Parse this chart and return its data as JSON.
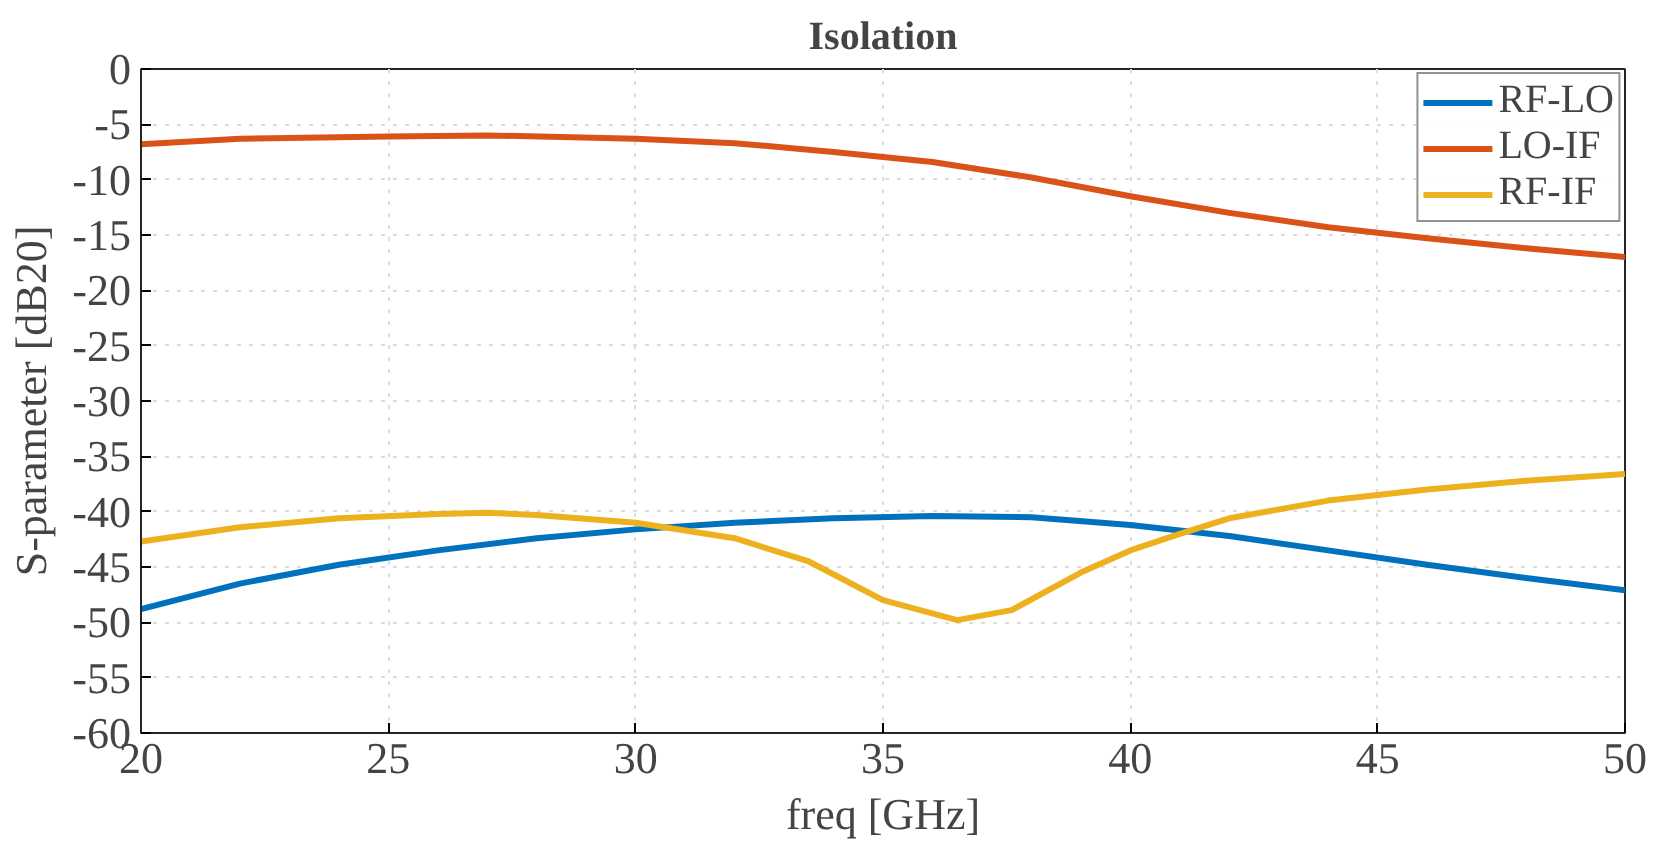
{
  "chart_data": {
    "type": "line",
    "title": "Isolation",
    "xlabel": "freq [GHz]",
    "ylabel": "S-parameter [dB20]",
    "xlim": [
      20,
      50
    ],
    "xticks": [
      20,
      25,
      30,
      35,
      40,
      45,
      50
    ],
    "ylim": [
      -60,
      0
    ],
    "yticks": [
      -60,
      -55,
      -50,
      -45,
      -40,
      -35,
      -30,
      -25,
      -20,
      -15,
      -10,
      -5,
      0
    ],
    "grid": true,
    "legend": "top right",
    "marker": "none",
    "line_style": "solid",
    "series": [
      {
        "name": "RF-LO",
        "color": "#0072bd",
        "x": [
          20,
          22,
          24,
          26,
          28,
          30,
          32,
          34,
          36,
          38,
          40,
          42,
          44,
          46,
          48,
          50
        ],
        "values": [
          -48.8,
          -46.5,
          -44.8,
          -43.5,
          -42.4,
          -41.6,
          -41.0,
          -40.6,
          -40.4,
          -40.5,
          -41.2,
          -42.2,
          -43.5,
          -44.8,
          -46.0,
          -47.1
        ]
      },
      {
        "name": "LO-IF",
        "color": "#d95319",
        "x": [
          20,
          22,
          25,
          27,
          30,
          32,
          34,
          36,
          38,
          40,
          42,
          44,
          46,
          48,
          50
        ],
        "values": [
          -6.8,
          -6.3,
          -6.1,
          -6.0,
          -6.3,
          -6.7,
          -7.5,
          -8.4,
          -9.8,
          -11.5,
          -13.0,
          -14.3,
          -15.3,
          -16.2,
          -17.0
        ]
      },
      {
        "name": "RF-IF",
        "color": "#edb120",
        "x": [
          20,
          22,
          24,
          26,
          27,
          28,
          30,
          32,
          33.5,
          35,
          36.5,
          37.6,
          39,
          40,
          41,
          42,
          44,
          46,
          48,
          50
        ],
        "values": [
          -42.7,
          -41.4,
          -40.6,
          -40.2,
          -40.1,
          -40.3,
          -41.0,
          -42.4,
          -44.5,
          -48.0,
          -49.8,
          -48.9,
          -45.5,
          -43.5,
          -42.0,
          -40.6,
          -39.0,
          -38.0,
          -37.2,
          -36.6
        ]
      }
    ]
  }
}
